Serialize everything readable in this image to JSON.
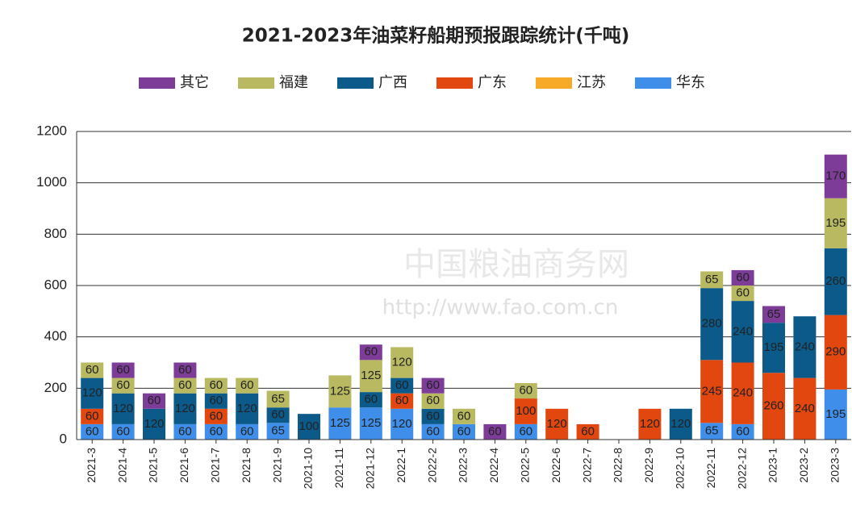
{
  "chart_data": {
    "type": "stacked_bar",
    "title": "2021-2023年油菜籽船期预报跟踪统计(千吨)",
    "watermark": [
      "中国粮油商务网",
      "http://www.fao.com.cn"
    ],
    "categories": [
      "2021-3",
      "2021-4",
      "2021-5",
      "2021-6",
      "2021-7",
      "2021-8",
      "2021-9",
      "2021-10",
      "2021-11",
      "2021-12",
      "2022-1",
      "2022-2",
      "2022-3",
      "2022-4",
      "2022-5",
      "2022-6",
      "2022-7",
      "2022-8",
      "2022-9",
      "2022-10",
      "2022-11",
      "2022-12",
      "2023-1",
      "2023-2",
      "2023-3"
    ],
    "series": [
      {
        "name": "其它",
        "color": "#7d3c98",
        "values": [
          null,
          60,
          60,
          60,
          null,
          null,
          null,
          null,
          null,
          60,
          null,
          60,
          null,
          60,
          null,
          null,
          null,
          null,
          null,
          null,
          null,
          60,
          65,
          null,
          170
        ]
      },
      {
        "name": "福建",
        "color": "#b8b960",
        "values": [
          60,
          60,
          null,
          60,
          60,
          60,
          65,
          null,
          125,
          125,
          120,
          60,
          60,
          null,
          60,
          null,
          null,
          null,
          null,
          null,
          65,
          60,
          null,
          null,
          195
        ]
      },
      {
        "name": "广西",
        "color": "#0b5a8a",
        "values": [
          120,
          120,
          120,
          120,
          60,
          120,
          60,
          100,
          null,
          60,
          60,
          60,
          null,
          null,
          null,
          null,
          null,
          null,
          null,
          120,
          280,
          240,
          195,
          240,
          260
        ]
      },
      {
        "name": "广东",
        "color": "#e2470f",
        "values": [
          60,
          null,
          null,
          null,
          60,
          null,
          null,
          null,
          null,
          null,
          60,
          null,
          null,
          null,
          100,
          120,
          60,
          null,
          120,
          null,
          245,
          240,
          260,
          240,
          290
        ]
      },
      {
        "name": "江苏",
        "color": "#f7a928",
        "values": [
          null,
          null,
          null,
          null,
          null,
          null,
          null,
          null,
          null,
          null,
          null,
          null,
          null,
          null,
          null,
          null,
          null,
          null,
          null,
          null,
          null,
          null,
          null,
          null,
          null
        ]
      },
      {
        "name": "华东",
        "color": "#3f8fea",
        "values": [
          60,
          60,
          null,
          60,
          60,
          60,
          65,
          null,
          125,
          125,
          120,
          60,
          60,
          null,
          60,
          null,
          null,
          null,
          null,
          null,
          65,
          60,
          null,
          null,
          195
        ]
      }
    ],
    "ylim": [
      0,
      1200
    ],
    "yticks": [
      0,
      200,
      400,
      600,
      800,
      1000,
      1200
    ],
    "grid": true
  }
}
